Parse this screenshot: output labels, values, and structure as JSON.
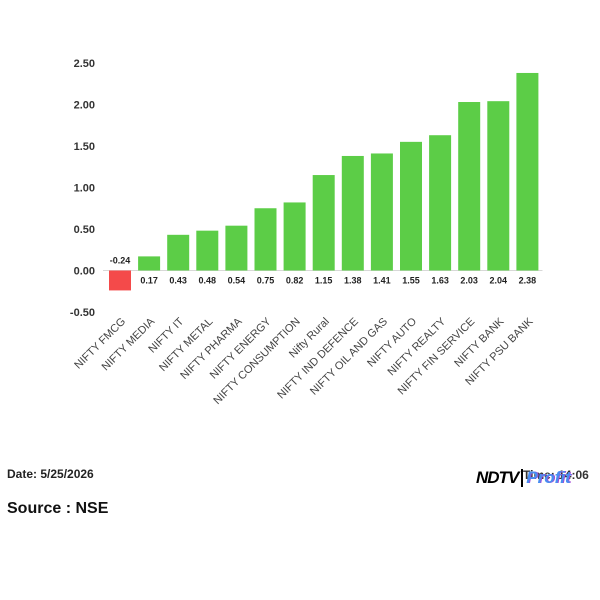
{
  "chart_data": {
    "type": "bar",
    "categories": [
      "NIFTY FMCG",
      "NIFTY MEDIA",
      "NIFTY IT",
      "NIFTY METAL",
      "NIFTY PHARMA",
      "NIFTY ENERGY",
      "NIFTY CONSUMPTION",
      "Nifty Rural",
      "NIFTY IND DEFENCE",
      "NIFTY OIL AND GAS",
      "NIFTY AUTO",
      "NIFTY REALTY",
      "NIFTY FIN SERVICE",
      "NIFTY BANK",
      "NIFTY PSU BANK"
    ],
    "values": [
      -0.24,
      0.17,
      0.43,
      0.48,
      0.54,
      0.75,
      0.82,
      1.15,
      1.38,
      1.41,
      1.55,
      1.63,
      2.03,
      2.04,
      2.38
    ],
    "value_labels": [
      "-0.24",
      "0.17",
      "0.43",
      "0.48",
      "0.54",
      "0.75",
      "0.82",
      "1.15",
      "1.38",
      "1.41",
      "1.55",
      "1.63",
      "2.03",
      "2.04",
      "2.38"
    ],
    "yticks": [
      "2.50",
      "2.00",
      "1.50",
      "1.00",
      "0.50",
      "0.00",
      "-0.50"
    ],
    "ylim": [
      -0.5,
      2.5
    ],
    "grid": false,
    "colors": {
      "positive": "#5ccd47",
      "negative": "#f44a4a"
    }
  },
  "footer": {
    "date": "Date: 5/25/2026",
    "time": "Time: 14:06",
    "source": "Source : NSE",
    "logo_left": "NDTV",
    "logo_right": "Profit"
  }
}
